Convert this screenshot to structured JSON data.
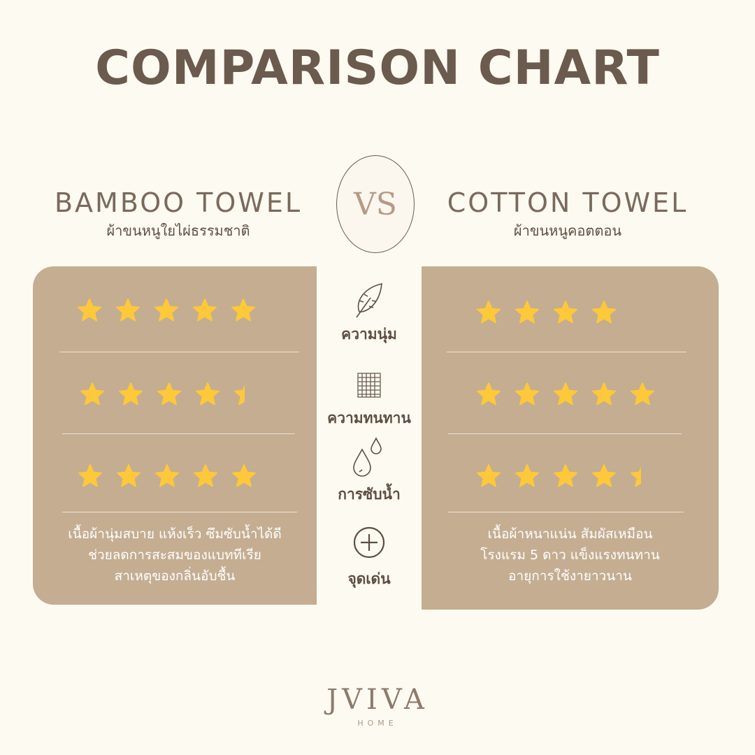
{
  "title": "COMPARISON CHART",
  "vs": "VS",
  "left": {
    "name": "BAMBOO TOWEL",
    "name_th": "ผ้าขนหนูใยไผ่ธรรมชาติ",
    "ratings": [
      5,
      4.5,
      5
    ],
    "description": [
      "เนื้อผ้านุ่มสบาย แห้งเร็ว ซึมซับน้ำได้ดี",
      "ช่วยลดการสะสมของแบททีเรีย",
      "สาเหตุของกลิ่นอับชื้น"
    ]
  },
  "right": {
    "name": "COTTON TOWEL",
    "name_th": "ผ้าขนหนูคอตตอน",
    "ratings": [
      4,
      5,
      4.5
    ],
    "description": [
      "เนื้อผ้าหนาแน่น สัมผัสเหมือน",
      "โรงแรม 5 ดาว แข็งแรงทนทาน",
      "อายุการใช้งายาวนาน"
    ]
  },
  "criteria": [
    {
      "label": "ความนุ่ม",
      "icon": "feather-icon"
    },
    {
      "label": "ความทนทาน",
      "icon": "weave-icon"
    },
    {
      "label": "การซับน้ำ",
      "icon": "water-drops-icon"
    },
    {
      "label": "จุดเด่น",
      "icon": "plus-circle-icon"
    }
  ],
  "rating_max": 5,
  "colors": {
    "star": "#fdc83a",
    "panel": "#c4ad91",
    "title": "#6b5a4e",
    "background": "#fdfaf2"
  },
  "logo": {
    "brand": "JVIVA",
    "sub": "HOME"
  }
}
